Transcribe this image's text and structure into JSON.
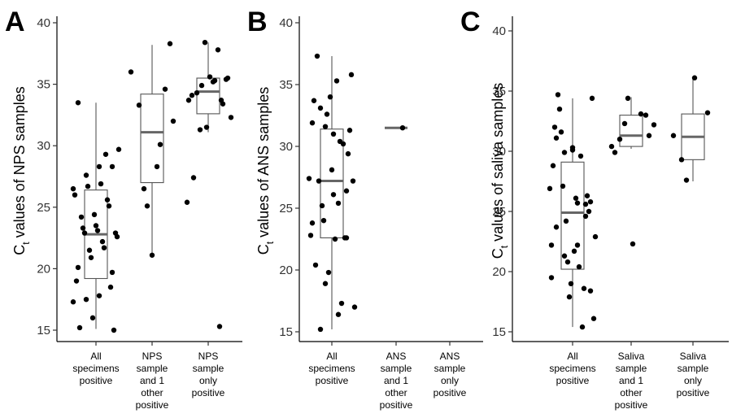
{
  "chart_data": [
    {
      "type": "box",
      "panel_label": "A",
      "ylabel_main": "C",
      "ylabel_sub": "t",
      "ylabel_rest": " values of NPS samples",
      "ylim": [
        14,
        41
      ],
      "yticks": [
        15,
        20,
        25,
        30,
        35,
        40
      ],
      "categories": [
        [
          "All",
          "specimens",
          "positive"
        ],
        [
          "NPS",
          "sample",
          "and 1",
          "other",
          "positive"
        ],
        [
          "NPS",
          "sample",
          "only",
          "positive"
        ]
      ],
      "boxes": [
        {
          "q1": 19.2,
          "median": 22.8,
          "q3": 26.4,
          "whisker_low": 15.1,
          "whisker_high": 33.5
        },
        {
          "q1": 27.0,
          "median": 31.1,
          "q3": 34.2,
          "whisker_low": 21.1,
          "whisker_high": 38.2
        },
        {
          "q1": 32.6,
          "median": 34.4,
          "q3": 35.5,
          "whisker_low": 31.1,
          "whisker_high": 38.4
        }
      ],
      "points": [
        [
          17.3,
          17.5,
          17.8,
          19.7,
          20.1,
          20.9,
          21.7,
          22.6,
          23.3,
          23.5,
          25.1,
          26.0,
          26.7,
          26.9,
          15.0,
          15.2,
          16.0,
          29.3,
          29.7,
          22.9,
          23.1,
          18.5,
          19.0,
          21.5,
          22.2,
          22.9,
          24.2,
          24.4,
          25.6,
          26.5,
          27.6,
          28.3,
          28.3,
          33.5
        ],
        [
          25.1,
          30.1,
          32.0,
          33.3,
          21.1,
          34.6,
          36.0,
          26.5,
          28.3,
          38.3
        ],
        [
          33.7,
          25.4,
          31.3,
          35.2,
          35.4,
          34.1,
          38.4,
          37.8,
          32.3,
          34.3,
          35.6,
          33.4,
          33.7,
          34.9,
          35.3,
          35.5,
          27.4,
          31.5,
          15.3
        ]
      ]
    },
    {
      "type": "box",
      "panel_label": "B",
      "ylabel_main": "C",
      "ylabel_sub": "t",
      "ylabel_rest": " values of ANS samples",
      "ylim": [
        14,
        41
      ],
      "yticks": [
        15,
        20,
        25,
        30,
        35,
        40
      ],
      "categories": [
        [
          "All",
          "specimens",
          "positive"
        ],
        [
          "ANS",
          "sample",
          "and 1",
          "other",
          "positive"
        ],
        [
          "ANS",
          "sample",
          "only",
          "positive"
        ]
      ],
      "boxes": [
        {
          "q1": 22.6,
          "median": 27.2,
          "q3": 31.4,
          "whisker_low": 15.2,
          "whisker_high": 37.3
        },
        {
          "q1": 31.5,
          "median": 31.5,
          "q3": 31.5,
          "whisker_low": 31.5,
          "whisker_high": 31.5
        },
        null
      ],
      "points": [
        [
          33.1,
          31.0,
          26.4,
          23.8,
          18.9,
          16.4,
          35.8,
          37.3,
          34.0,
          30.2,
          27.4,
          25.2,
          22.5,
          29.4,
          33.7,
          32.6,
          30.4,
          27.2,
          27.2,
          28.1,
          22.6,
          22.8,
          24.0,
          35.3,
          31.3,
          20.4,
          19.8,
          17.3,
          17.0,
          15.2,
          26.1,
          22.6,
          31.9,
          31.6,
          25.4
        ],
        [
          31.5
        ],
        []
      ]
    },
    {
      "type": "box",
      "panel_label": "C",
      "ylabel_main": "C",
      "ylabel_sub": "t",
      "ylabel_rest": " values of saliva samples",
      "ylim": [
        14,
        41
      ],
      "yticks": [
        15,
        20,
        25,
        30,
        35,
        40
      ],
      "categories": [
        [
          "All",
          "specimens",
          "positive"
        ],
        [
          "Saliva",
          "sample",
          "and 1",
          "other",
          "positive"
        ],
        [
          "Saliva",
          "sample",
          "only",
          "positive"
        ]
      ],
      "boxes": [
        {
          "q1": 20.2,
          "median": 24.9,
          "q3": 29.1,
          "whisker_low": 15.4,
          "whisker_high": 34.4
        },
        {
          "q1": 30.4,
          "median": 31.3,
          "q3": 33.0,
          "whisker_low": 30.2,
          "whisker_high": 34.5
        },
        {
          "q1": 29.3,
          "median": 31.2,
          "q3": 33.1,
          "whisker_low": 27.5,
          "whisker_high": 36.1
        }
      ],
      "points": [
        [
          30.1,
          25.6,
          19.5,
          29.9,
          25.7,
          25.8,
          23.7,
          17.9,
          15.4,
          22.9,
          31.6,
          21.7,
          26.3,
          28.8,
          24.2,
          20.4,
          34.4,
          34.7,
          19.0,
          18.6,
          26.9,
          27.1,
          26.1,
          25.0,
          32.0,
          20.8,
          29.6,
          16.1,
          33.5,
          30.3,
          24.6,
          22.2,
          21.3,
          22.2,
          18.4,
          31.1
        ],
        [
          31.3,
          29.9,
          34.4,
          33.1,
          32.2,
          31.0,
          22.3,
          33.0,
          30.4,
          32.3
        ],
        [
          29.3,
          36.1,
          33.2,
          31.3,
          27.6
        ]
      ]
    }
  ]
}
